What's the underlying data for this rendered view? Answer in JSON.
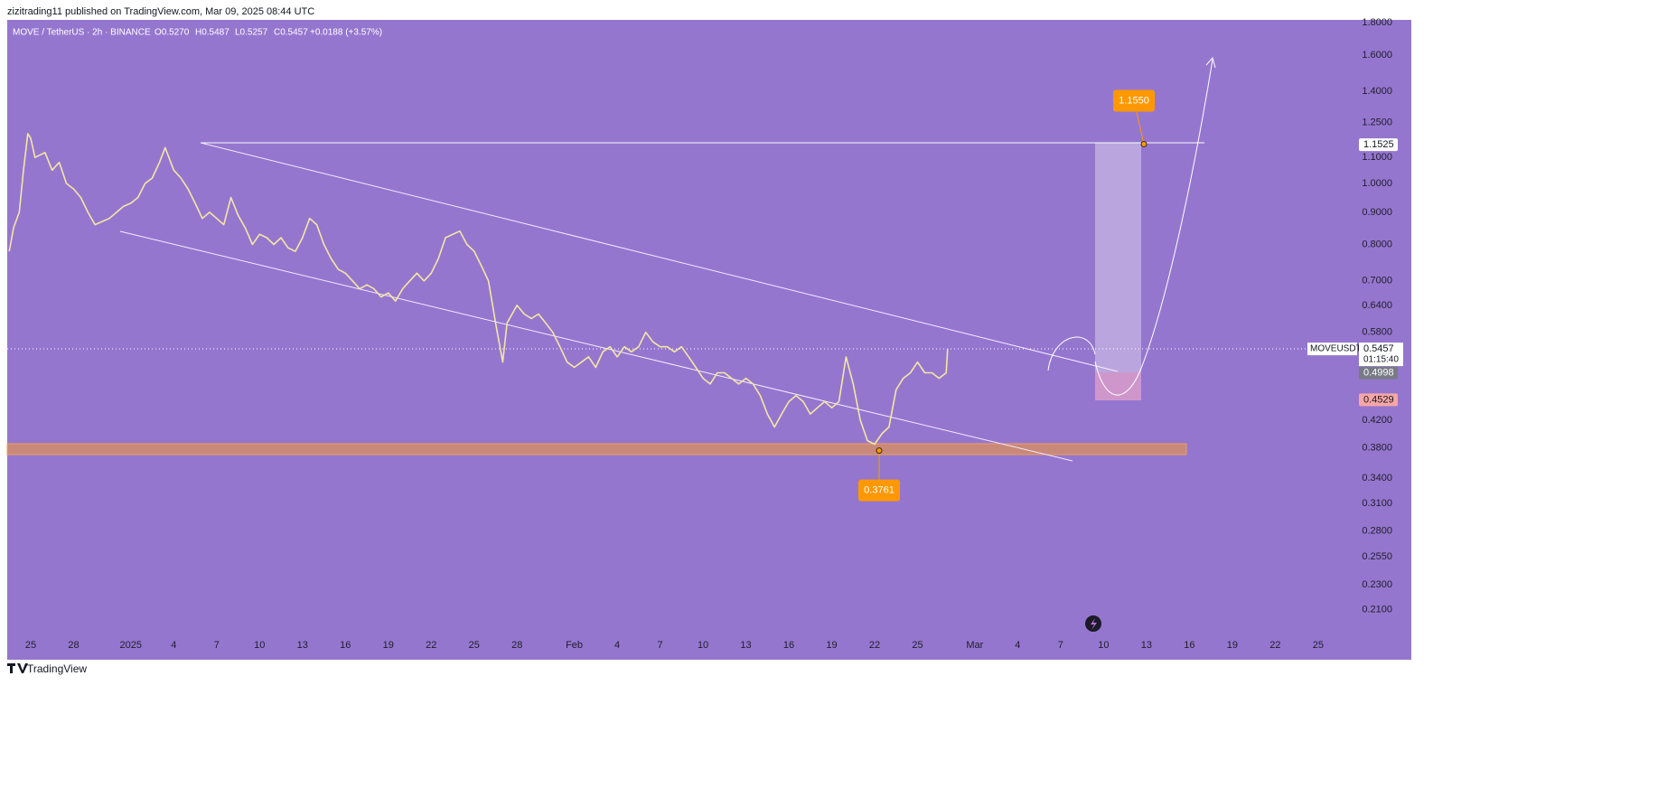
{
  "header": {
    "byline": "zizitrading11 published on TradingView.com, Mar 09, 2025 08:44 UTC"
  },
  "footer": {
    "brand": "TradingView"
  },
  "chart_data": {
    "type": "line",
    "legend_text": {
      "symbol": "MOVE / TetherUS · 2h · BINANCE",
      "open": "O0.5270",
      "high": "H0.5487",
      "low": "L0.5257",
      "close": "C0.5457",
      "change": "+0.0188 (+3.57%)"
    },
    "log_scale": true,
    "background": "#9576cf",
    "series": [
      {
        "name": "MOVEUSDT",
        "color": "#f4e7a2",
        "x": [
          -1.5,
          -1.2,
          -0.8,
          -0.5,
          -0.2,
          0,
          0.3,
          1,
          1.5,
          2,
          2.5,
          3,
          3.5,
          4,
          4.5,
          5,
          5.5,
          6,
          6.5,
          7,
          7.5,
          8,
          8.5,
          9,
          9.4,
          10,
          10.5,
          11,
          11.5,
          12,
          12.5,
          13,
          13.5,
          14,
          14.5,
          15,
          15.5,
          16,
          16.5,
          17,
          17.5,
          18,
          18.5,
          19,
          19.5,
          20,
          20.5,
          21,
          21.5,
          22,
          22.5,
          23,
          23.5,
          24,
          24.5,
          25,
          25.5,
          26,
          26.5,
          27,
          27.5,
          28,
          28.5,
          29,
          29.5,
          30,
          30.5,
          31,
          31.5,
          32,
          32.5,
          33,
          33.3,
          34,
          34.5,
          35,
          35.5,
          36,
          36.5,
          37,
          37.5,
          38,
          38.5,
          39,
          39.5,
          40,
          40.5,
          41,
          41.5,
          42,
          42.5,
          43,
          43.5,
          44,
          44.5,
          45,
          45.5,
          46,
          46.5,
          47,
          47.5,
          48,
          48.5,
          49,
          49.5,
          50,
          50.5,
          51,
          51.5,
          52,
          52.5,
          53,
          53.5,
          54,
          54.5,
          55,
          55.5,
          56,
          56.5,
          57,
          57.5,
          58,
          58.5,
          59,
          59.5,
          60,
          60.5,
          61,
          61.5,
          62,
          62.5,
          63,
          63.5,
          64,
          64.1
        ],
        "values": [
          0.78,
          0.85,
          0.9,
          1.05,
          1.2,
          1.18,
          1.1,
          1.12,
          1.05,
          1.08,
          1.0,
          0.98,
          0.95,
          0.9,
          0.86,
          0.87,
          0.88,
          0.9,
          0.92,
          0.93,
          0.95,
          1.0,
          1.02,
          1.08,
          1.14,
          1.05,
          1.02,
          0.98,
          0.93,
          0.88,
          0.9,
          0.88,
          0.86,
          0.95,
          0.89,
          0.85,
          0.8,
          0.83,
          0.82,
          0.8,
          0.82,
          0.79,
          0.78,
          0.82,
          0.88,
          0.86,
          0.8,
          0.76,
          0.73,
          0.72,
          0.7,
          0.68,
          0.69,
          0.68,
          0.66,
          0.67,
          0.65,
          0.68,
          0.7,
          0.72,
          0.7,
          0.72,
          0.76,
          0.82,
          0.83,
          0.84,
          0.8,
          0.78,
          0.74,
          0.7,
          0.6,
          0.52,
          0.6,
          0.64,
          0.62,
          0.61,
          0.62,
          0.6,
          0.58,
          0.55,
          0.52,
          0.51,
          0.52,
          0.53,
          0.51,
          0.54,
          0.55,
          0.53,
          0.55,
          0.54,
          0.55,
          0.58,
          0.56,
          0.55,
          0.55,
          0.54,
          0.55,
          0.53,
          0.51,
          0.49,
          0.48,
          0.5,
          0.5,
          0.49,
          0.48,
          0.49,
          0.48,
          0.46,
          0.43,
          0.41,
          0.43,
          0.45,
          0.46,
          0.45,
          0.43,
          0.44,
          0.45,
          0.44,
          0.45,
          0.53,
          0.48,
          0.42,
          0.39,
          0.385,
          0.4,
          0.41,
          0.47,
          0.49,
          0.5,
          0.52,
          0.5,
          0.5,
          0.49,
          0.5,
          0.5457
        ]
      }
    ],
    "xlim": [
      -1.64,
      92.6
    ],
    "xticks": [
      {
        "value": 0,
        "label": "25"
      },
      {
        "value": 3,
        "label": "28"
      },
      {
        "value": 7,
        "label": "2025"
      },
      {
        "value": 10,
        "label": "4"
      },
      {
        "value": 13,
        "label": "7"
      },
      {
        "value": 16,
        "label": "10"
      },
      {
        "value": 19,
        "label": "13"
      },
      {
        "value": 22,
        "label": "16"
      },
      {
        "value": 25,
        "label": "19"
      },
      {
        "value": 28,
        "label": "22"
      },
      {
        "value": 31,
        "label": "25"
      },
      {
        "value": 34,
        "label": "28"
      },
      {
        "value": 38,
        "label": "Feb"
      },
      {
        "value": 41,
        "label": "4"
      },
      {
        "value": 44,
        "label": "7"
      },
      {
        "value": 47,
        "label": "10"
      },
      {
        "value": 50,
        "label": "13"
      },
      {
        "value": 53,
        "label": "16"
      },
      {
        "value": 56,
        "label": "19"
      },
      {
        "value": 59,
        "label": "22"
      },
      {
        "value": 62,
        "label": "25"
      },
      {
        "value": 66,
        "label": "Mar"
      },
      {
        "value": 69,
        "label": "4"
      },
      {
        "value": 72,
        "label": "7"
      },
      {
        "value": 75,
        "label": "10"
      },
      {
        "value": 78,
        "label": "13"
      },
      {
        "value": 81,
        "label": "16"
      },
      {
        "value": 84,
        "label": "19"
      },
      {
        "value": 87,
        "label": "22"
      },
      {
        "value": 90,
        "label": "25"
      }
    ],
    "ylim": [
      0.19,
      1.82
    ],
    "yticks": [
      {
        "value": 1.8,
        "label": "1.8000"
      },
      {
        "value": 1.6,
        "label": "1.6000"
      },
      {
        "value": 1.4,
        "label": "1.4000"
      },
      {
        "value": 1.25,
        "label": "1.2500"
      },
      {
        "value": 1.1,
        "label": "1.1000"
      },
      {
        "value": 1,
        "label": "1.0000"
      },
      {
        "value": 0.9,
        "label": "0.9000"
      },
      {
        "value": 0.8,
        "label": "0.8000"
      },
      {
        "value": 0.7,
        "label": "0.7000"
      },
      {
        "value": 0.64,
        "label": "0.6400"
      },
      {
        "value": 0.58,
        "label": "0.5800"
      },
      {
        "value": 0.42,
        "label": "0.4200"
      },
      {
        "value": 0.38,
        "label": "0.3800"
      },
      {
        "value": 0.34,
        "label": "0.3400"
      },
      {
        "value": 0.31,
        "label": "0.3100"
      },
      {
        "value": 0.28,
        "label": "0.2800"
      },
      {
        "value": 0.255,
        "label": "0.2550"
      },
      {
        "value": 0.23,
        "label": "0.2300"
      },
      {
        "value": 0.21,
        "label": "0.2100"
      }
    ],
    "last_price": {
      "value": 0.5457,
      "label": "0.5457"
    },
    "countdown": "01:15:40",
    "price_badges": [
      {
        "value": 1.1525,
        "label": "1.1525",
        "color": "#ffffff",
        "text_color": "#131722"
      },
      {
        "value": 0.4998,
        "label": "0.4998",
        "color": "#787b86",
        "text_color": "#ffffff"
      },
      {
        "value": 0.4529,
        "label": "0.4529",
        "color": "#f7a6a6",
        "text_color": "#131722"
      }
    ],
    "annotations": [
      {
        "value": 1.155,
        "label": "1.1550",
        "color": "#ff9800"
      },
      {
        "value": 0.3761,
        "label": "0.3761",
        "color": "#ff9800"
      }
    ]
  }
}
